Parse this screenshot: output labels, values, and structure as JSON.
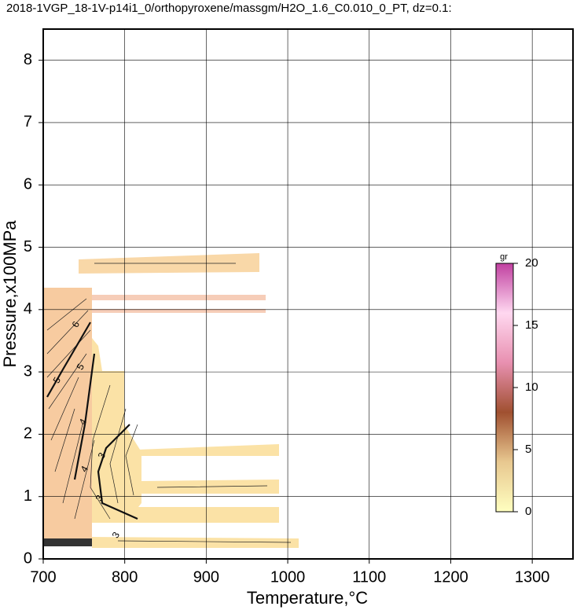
{
  "chart_data": {
    "type": "contour",
    "title": "2018-1VGP_18-1V-p14i1_0/orthopyroxene/massgm/H2O_1.6_C0.010_0_PT, dz=0.1:",
    "xlabel": "Temperature,°C",
    "ylabel": "Pressure,x100MPa",
    "xlim": [
      700,
      1350
    ],
    "xticks": [
      700,
      800,
      900,
      1000,
      1100,
      1200,
      1300
    ],
    "ylim": [
      0,
      8.5
    ],
    "yticks": [
      0,
      1,
      2,
      3,
      4,
      5,
      6,
      7,
      8
    ],
    "grid": true,
    "contour_labels": [
      6,
      5,
      5,
      4,
      3,
      3,
      3,
      4
    ],
    "colorbar": {
      "label": "gr",
      "lim": [
        0,
        20
      ],
      "ticks": [
        0,
        5,
        10,
        15,
        20
      ],
      "colors": [
        "#ffffc0",
        "#e8c890",
        "#a05030",
        "#e890b0",
        "#ffd8f0",
        "#c040a0"
      ]
    }
  }
}
